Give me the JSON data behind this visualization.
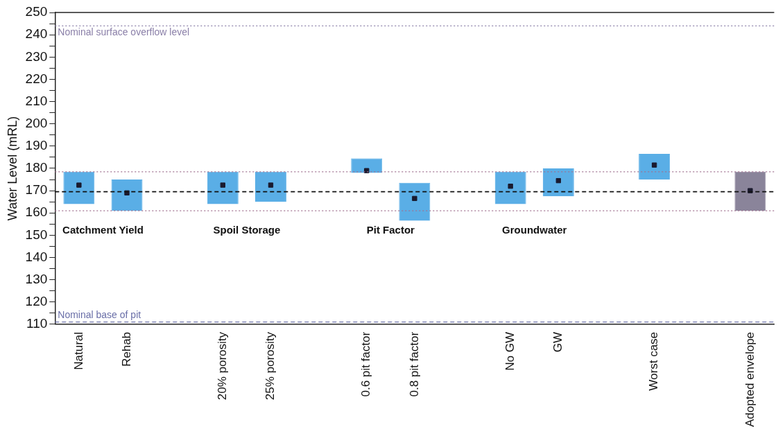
{
  "chart_data": {
    "type": "bar",
    "ylabel": "Water Level (mRL)",
    "categories": [
      "Natural",
      "Rehab",
      null,
      "20% porosity",
      "25% porosity",
      null,
      "0.6 pit factor",
      "0.8 pit factor",
      null,
      "No GW",
      "GW",
      null,
      "Worst case",
      null,
      "Adopted envelope"
    ],
    "series": [
      {
        "colors": [
          "#5aaee6",
          "#5aaee6",
          null,
          "#5aaee6",
          "#5aaee6",
          null,
          "#5aaee6",
          "#5aaee6",
          null,
          "#5aaee6",
          "#5aaee6",
          null,
          "#5aaee6",
          null,
          "#8a849a"
        ],
        "base": [
          164,
          161,
          null,
          164,
          165,
          null,
          178,
          156.5,
          null,
          164,
          167.5,
          null,
          175,
          null,
          161
        ],
        "values": [
          14.5,
          14,
          null,
          14.5,
          13.5,
          null,
          6.5,
          17,
          null,
          14.5,
          12.5,
          null,
          11.5,
          null,
          17.5
        ]
      },
      {
        "type": "scatter",
        "color": "#1a1a2e",
        "marker": "square",
        "values": [
          172.5,
          169,
          null,
          172.5,
          172.5,
          null,
          179,
          166.5,
          null,
          172,
          174.5,
          null,
          181.5,
          null,
          170
        ]
      }
    ],
    "ylim": [
      110,
      250
    ],
    "yticks": [
      110,
      {
        "value": 115,
        "label": null
      },
      120,
      {
        "value": 125,
        "label": null
      },
      130,
      {
        "value": 135,
        "label": null
      },
      140,
      {
        "value": 145,
        "label": null
      },
      150,
      {
        "value": 155,
        "label": null
      },
      160,
      {
        "value": 165,
        "label": null
      },
      170,
      {
        "value": 175,
        "label": null
      },
      180,
      {
        "value": 185,
        "label": null
      },
      190,
      {
        "value": 195,
        "label": null
      },
      200,
      {
        "value": 205,
        "label": null
      },
      210,
      {
        "value": 215,
        "label": null
      },
      220,
      {
        "value": 225,
        "label": null
      },
      230,
      {
        "value": 235,
        "label": null
      },
      240,
      {
        "value": 245,
        "label": null
      },
      250
    ],
    "ref_lines": [
      {
        "axis": "y",
        "value": 244,
        "label": "Nominal surface overflow level",
        "color": "#8a7fa8",
        "line_style": "dotted"
      },
      {
        "axis": "y",
        "value": 111,
        "label": "Nominal base of pit",
        "color": "#6a6fa8",
        "line_style": "dashed"
      },
      {
        "axis": "y",
        "value": 178.5,
        "label": null,
        "color": "#a07090",
        "line_style": "dotted"
      },
      {
        "axis": "y",
        "value": 161,
        "label": null,
        "color": "#a07090",
        "line_style": "dotted"
      },
      {
        "axis": "y",
        "value": 169.5,
        "label": null,
        "color": "#111111",
        "line_style": "dashed"
      }
    ],
    "annotations": [
      "Catchment Yield",
      "Spoil Storage",
      "Pit Factor",
      "Groundwater"
    ],
    "grid": false,
    "legend": false
  }
}
